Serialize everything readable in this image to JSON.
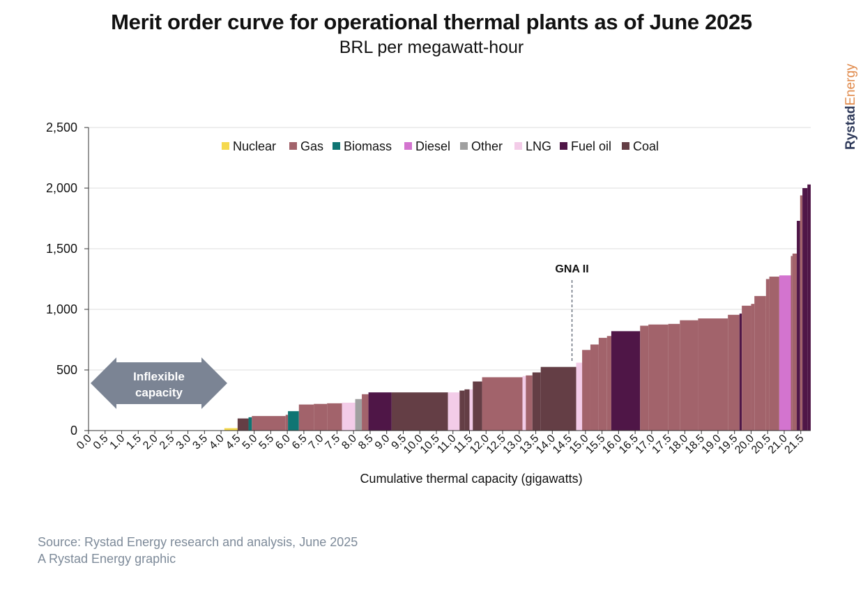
{
  "title": "Merit order curve for operational thermal plants as of June 2025",
  "subtitle": "BRL per megawatt-hour",
  "brand": {
    "part1": "Rystad",
    "part2": "Energy"
  },
  "source": {
    "line1": "Source: Rystad Energy research and analysis, June 2025",
    "line2": "A Rystad Energy graphic"
  },
  "colors": {
    "Nuclear": "#f5d94e",
    "Gas": "#a2636b",
    "Biomass": "#0f7573",
    "Diesel": "#d374cf",
    "Other": "#a0a0a0",
    "LNG": "#f3cce8",
    "Fuel oil": "#4f1647",
    "Coal": "#643e45"
  },
  "chart_data": {
    "type": "bar",
    "xlabel": "Cumulative thermal capacity (gigawatts)",
    "ylabel": "",
    "xlim": [
      0,
      21.8
    ],
    "ylim": [
      0,
      2500
    ],
    "y_ticks": [
      "0",
      "500",
      "1,000",
      "1,500",
      "2,000",
      "2,500"
    ],
    "x_ticks": [
      "0.0",
      "0.5",
      "1.0",
      "1.5",
      "2.0",
      "2.5",
      "3.0",
      "3.5",
      "4.0",
      "4.5",
      "5.0",
      "5.5",
      "6.0",
      "6.5",
      "7.0",
      "7.5",
      "8.0",
      "8.5",
      "9.0",
      "9.5",
      "10.0",
      "10.5",
      "11.0",
      "11.5",
      "12.0",
      "12.5",
      "13.0",
      "13.5",
      "14.0",
      "14.5",
      "15.0",
      "15.5",
      "16.0",
      "16.5",
      "17.0",
      "17.5",
      "18.0",
      "18.5",
      "19.0",
      "19.5",
      "20.0",
      "20.5",
      "21.0",
      "21.5"
    ],
    "legend": [
      "Nuclear",
      "Gas",
      "Biomass",
      "Diesel",
      "Other",
      "LNG",
      "Fuel oil",
      "Coal"
    ],
    "annotations": [
      {
        "text": "GNA II",
        "x": 14.72,
        "y": 560
      },
      {
        "text": "Inflexible capacity",
        "x_range": [
          0,
          4.4
        ]
      }
    ],
    "bars": [
      {
        "x0": 0.0,
        "x1": 4.1,
        "value": 0,
        "type": "Nuclear"
      },
      {
        "x0": 4.1,
        "x1": 4.5,
        "value": 20,
        "type": "Nuclear"
      },
      {
        "x0": 4.5,
        "x1": 4.83,
        "value": 100,
        "type": "Coal"
      },
      {
        "x0": 4.83,
        "x1": 4.93,
        "value": 110,
        "type": "Biomass"
      },
      {
        "x0": 4.93,
        "x1": 5.95,
        "value": 120,
        "type": "Gas"
      },
      {
        "x0": 5.95,
        "x1": 6.02,
        "value": 130,
        "type": "Gas"
      },
      {
        "x0": 6.02,
        "x1": 6.35,
        "value": 160,
        "type": "Biomass"
      },
      {
        "x0": 6.35,
        "x1": 6.8,
        "value": 215,
        "type": "Gas"
      },
      {
        "x0": 6.8,
        "x1": 7.2,
        "value": 220,
        "type": "Gas"
      },
      {
        "x0": 7.2,
        "x1": 7.65,
        "value": 225,
        "type": "Gas"
      },
      {
        "x0": 7.65,
        "x1": 8.05,
        "value": 230,
        "type": "LNG"
      },
      {
        "x0": 8.05,
        "x1": 8.25,
        "value": 260,
        "type": "Other"
      },
      {
        "x0": 8.25,
        "x1": 8.45,
        "value": 300,
        "type": "Gas"
      },
      {
        "x0": 8.45,
        "x1": 9.15,
        "value": 315,
        "type": "Fuel oil"
      },
      {
        "x0": 9.15,
        "x1": 10.85,
        "value": 315,
        "type": "Coal"
      },
      {
        "x0": 10.85,
        "x1": 11.2,
        "value": 315,
        "type": "LNG"
      },
      {
        "x0": 11.2,
        "x1": 11.35,
        "value": 330,
        "type": "Coal"
      },
      {
        "x0": 11.35,
        "x1": 11.5,
        "value": 340,
        "type": "Coal"
      },
      {
        "x0": 11.5,
        "x1": 11.6,
        "value": 340,
        "type": "LNG"
      },
      {
        "x0": 11.6,
        "x1": 11.88,
        "value": 405,
        "type": "Coal"
      },
      {
        "x0": 11.88,
        "x1": 13.1,
        "value": 440,
        "type": "Gas"
      },
      {
        "x0": 13.1,
        "x1": 13.2,
        "value": 450,
        "type": "LNG"
      },
      {
        "x0": 13.2,
        "x1": 13.4,
        "value": 455,
        "type": "Gas"
      },
      {
        "x0": 13.4,
        "x1": 13.65,
        "value": 480,
        "type": "Coal"
      },
      {
        "x0": 13.65,
        "x1": 14.72,
        "value": 525,
        "type": "Coal"
      },
      {
        "x0": 14.72,
        "x1": 14.9,
        "value": 560,
        "type": "LNG"
      },
      {
        "x0": 14.9,
        "x1": 15.15,
        "value": 665,
        "type": "Gas"
      },
      {
        "x0": 15.15,
        "x1": 15.4,
        "value": 710,
        "type": "Gas"
      },
      {
        "x0": 15.4,
        "x1": 15.65,
        "value": 765,
        "type": "Gas"
      },
      {
        "x0": 15.65,
        "x1": 15.78,
        "value": 780,
        "type": "Gas"
      },
      {
        "x0": 15.78,
        "x1": 16.65,
        "value": 820,
        "type": "Fuel oil"
      },
      {
        "x0": 16.65,
        "x1": 16.9,
        "value": 865,
        "type": "Gas"
      },
      {
        "x0": 16.9,
        "x1": 17.5,
        "value": 875,
        "type": "Gas"
      },
      {
        "x0": 17.5,
        "x1": 17.85,
        "value": 880,
        "type": "Gas"
      },
      {
        "x0": 17.85,
        "x1": 18.4,
        "value": 910,
        "type": "Gas"
      },
      {
        "x0": 18.4,
        "x1": 19.3,
        "value": 925,
        "type": "Gas"
      },
      {
        "x0": 19.3,
        "x1": 19.65,
        "value": 955,
        "type": "Gas"
      },
      {
        "x0": 19.65,
        "x1": 19.72,
        "value": 965,
        "type": "Fuel oil"
      },
      {
        "x0": 19.72,
        "x1": 20.0,
        "value": 1030,
        "type": "Gas"
      },
      {
        "x0": 20.0,
        "x1": 20.1,
        "value": 1045,
        "type": "Gas"
      },
      {
        "x0": 20.1,
        "x1": 20.45,
        "value": 1110,
        "type": "Gas"
      },
      {
        "x0": 20.45,
        "x1": 20.55,
        "value": 1250,
        "type": "Gas"
      },
      {
        "x0": 20.55,
        "x1": 20.85,
        "value": 1270,
        "type": "Gas"
      },
      {
        "x0": 20.85,
        "x1": 21.2,
        "value": 1280,
        "type": "Diesel"
      },
      {
        "x0": 21.2,
        "x1": 21.25,
        "value": 1440,
        "type": "Gas"
      },
      {
        "x0": 21.25,
        "x1": 21.38,
        "value": 1460,
        "type": "Gas"
      },
      {
        "x0": 21.38,
        "x1": 21.48,
        "value": 1730,
        "type": "Fuel oil"
      },
      {
        "x0": 21.48,
        "x1": 21.55,
        "value": 1940,
        "type": "Gas"
      },
      {
        "x0": 21.55,
        "x1": 21.7,
        "value": 2000,
        "type": "Fuel oil"
      },
      {
        "x0": 21.7,
        "x1": 21.8,
        "value": 2030,
        "type": "Fuel oil"
      }
    ]
  }
}
